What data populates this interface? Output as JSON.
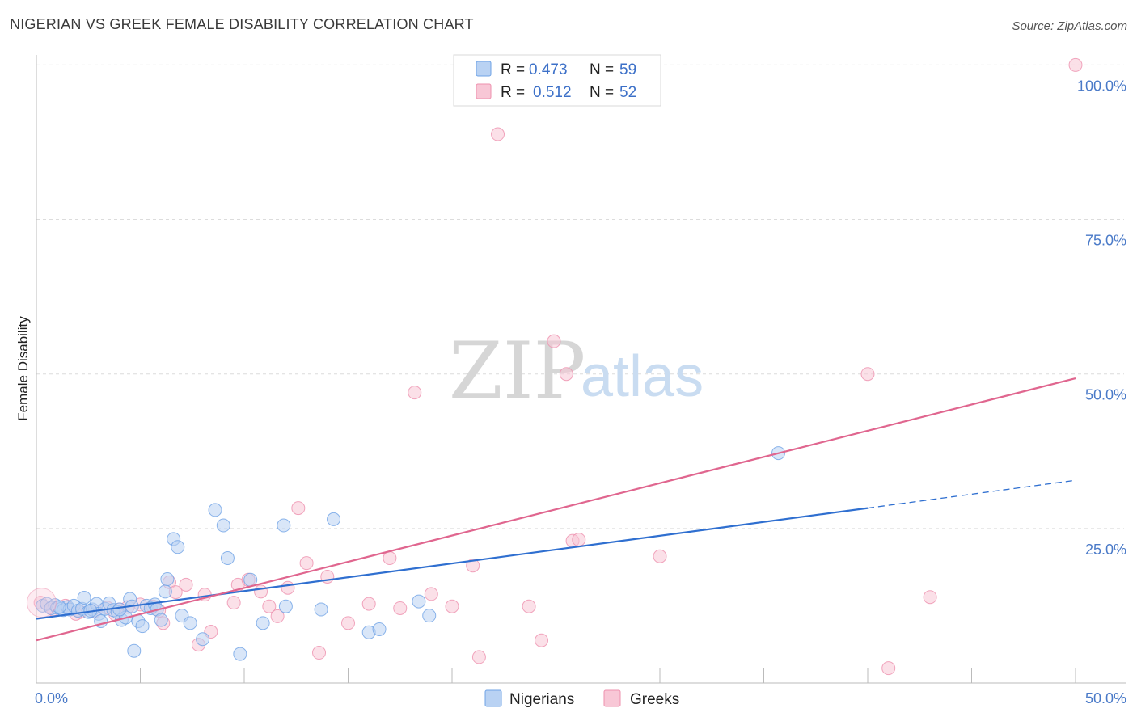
{
  "title": "NIGERIAN VS GREEK FEMALE DISABILITY CORRELATION CHART",
  "source": "Source: ZipAtlas.com",
  "colors": {
    "nigerians": "#6fa3e6",
    "nigerians_fill": "#b9d2f3",
    "nigerians_line": "#2f6fd0",
    "greeks": "#ee90ae",
    "greeks_fill": "#f8c7d6",
    "greeks_line": "#e0668f"
  },
  "legend": {
    "nigerians": {
      "r_label": "R =",
      "r_value": "0.473",
      "n_label": "N =",
      "n_value": "59"
    },
    "greeks": {
      "r_label": "R =",
      "r_value": "0.512",
      "n_label": "N =",
      "n_value": "52"
    }
  },
  "chart_data": {
    "type": "scatter",
    "title": "NIGERIAN VS GREEK FEMALE DISABILITY CORRELATION CHART",
    "xlabel": "",
    "ylabel": "Female Disability",
    "xlim": [
      0,
      50
    ],
    "ylim": [
      0,
      103
    ],
    "x_tick_labels": [
      "0.0%",
      "50.0%"
    ],
    "y_tick_labels": [
      "25.0%",
      "50.0%",
      "75.0%",
      "100.0%"
    ],
    "y_ticks": [
      25,
      50,
      75,
      100
    ],
    "watermark": {
      "part1": "ZIP",
      "part2": "atlas"
    },
    "bottom_legend": [
      "Nigerians",
      "Greeks"
    ],
    "series": [
      {
        "name": "Nigerians",
        "points": [
          [
            0.3,
            12.5
          ],
          [
            0.5,
            12.8
          ],
          [
            0.7,
            12.1
          ],
          [
            0.9,
            12.6
          ],
          [
            1.0,
            12.2
          ],
          [
            1.2,
            12.0
          ],
          [
            1.3,
            11.8
          ],
          [
            1.5,
            12.3
          ],
          [
            1.6,
            11.9
          ],
          [
            1.8,
            12.5
          ],
          [
            2.0,
            11.7
          ],
          [
            2.2,
            12.0
          ],
          [
            2.3,
            13.8
          ],
          [
            2.5,
            11.5
          ],
          [
            2.7,
            11.9
          ],
          [
            2.9,
            12.8
          ],
          [
            3.0,
            11.2
          ],
          [
            3.1,
            10.0
          ],
          [
            3.3,
            12.0
          ],
          [
            3.5,
            12.9
          ],
          [
            3.7,
            11.8
          ],
          [
            3.9,
            11.5
          ],
          [
            4.1,
            10.2
          ],
          [
            4.3,
            10.6
          ],
          [
            4.5,
            13.6
          ],
          [
            4.6,
            12.4
          ],
          [
            4.7,
            5.2
          ],
          [
            4.9,
            10.0
          ],
          [
            5.1,
            9.2
          ],
          [
            5.3,
            12.5
          ],
          [
            5.5,
            12.1
          ],
          [
            5.7,
            12.7
          ],
          [
            5.8,
            11.9
          ],
          [
            6.0,
            10.2
          ],
          [
            6.2,
            14.8
          ],
          [
            6.3,
            16.8
          ],
          [
            6.6,
            23.3
          ],
          [
            6.8,
            22.0
          ],
          [
            7.0,
            10.9
          ],
          [
            7.4,
            9.7
          ],
          [
            8.0,
            7.1
          ],
          [
            8.6,
            28.0
          ],
          [
            9.0,
            25.5
          ],
          [
            9.2,
            20.2
          ],
          [
            9.8,
            4.7
          ],
          [
            10.3,
            16.7
          ],
          [
            10.9,
            9.7
          ],
          [
            11.9,
            25.5
          ],
          [
            12.0,
            12.4
          ],
          [
            13.7,
            11.9
          ],
          [
            14.3,
            26.5
          ],
          [
            16.0,
            8.2
          ],
          [
            16.5,
            8.7
          ],
          [
            18.4,
            13.2
          ],
          [
            18.9,
            10.9
          ],
          [
            35.7,
            37.2
          ],
          [
            1.1,
            12.3
          ],
          [
            2.6,
            11.7
          ],
          [
            4.0,
            11.9
          ]
        ]
      },
      {
        "name": "Greeks",
        "points": [
          [
            0.2,
            13.0
          ],
          [
            0.8,
            11.9
          ],
          [
            1.4,
            12.5
          ],
          [
            2.1,
            11.5
          ],
          [
            2.8,
            11.6
          ],
          [
            3.4,
            12.2
          ],
          [
            4.0,
            11.9
          ],
          [
            4.4,
            12.3
          ],
          [
            5.0,
            12.7
          ],
          [
            5.6,
            12.4
          ],
          [
            6.1,
            9.7
          ],
          [
            6.4,
            16.3
          ],
          [
            6.7,
            14.7
          ],
          [
            7.2,
            15.9
          ],
          [
            7.8,
            6.2
          ],
          [
            8.1,
            14.3
          ],
          [
            8.4,
            8.3
          ],
          [
            9.5,
            13.0
          ],
          [
            9.7,
            15.9
          ],
          [
            10.2,
            16.7
          ],
          [
            10.8,
            14.8
          ],
          [
            11.2,
            12.4
          ],
          [
            11.6,
            10.8
          ],
          [
            12.1,
            15.4
          ],
          [
            12.6,
            28.3
          ],
          [
            13.0,
            19.4
          ],
          [
            13.6,
            4.9
          ],
          [
            14.0,
            17.2
          ],
          [
            15.0,
            9.7
          ],
          [
            16.0,
            12.8
          ],
          [
            17.0,
            20.2
          ],
          [
            17.5,
            12.1
          ],
          [
            18.2,
            47.0
          ],
          [
            19.0,
            14.4
          ],
          [
            20.0,
            12.4
          ],
          [
            21.0,
            19.0
          ],
          [
            21.3,
            4.2
          ],
          [
            22.2,
            88.8
          ],
          [
            23.7,
            12.4
          ],
          [
            24.3,
            6.9
          ],
          [
            24.9,
            55.3
          ],
          [
            25.5,
            50.0
          ],
          [
            25.8,
            23.0
          ],
          [
            26.1,
            23.2
          ],
          [
            30.0,
            20.5
          ],
          [
            40.0,
            50.0
          ],
          [
            41.0,
            2.4
          ],
          [
            43.0,
            13.9
          ],
          [
            50.0,
            100.0
          ],
          [
            3.8,
            11.1
          ],
          [
            1.9,
            11.2
          ],
          [
            5.9,
            11.7
          ]
        ]
      }
    ],
    "trend_lines": [
      {
        "name": "Nigerians",
        "x": [
          0,
          40
        ],
        "y": [
          10.4,
          28.3
        ],
        "extend_dashed_to": [
          50,
          32.8
        ]
      },
      {
        "name": "Greeks",
        "x": [
          0,
          50
        ],
        "y": [
          6.9,
          49.3
        ]
      }
    ]
  }
}
